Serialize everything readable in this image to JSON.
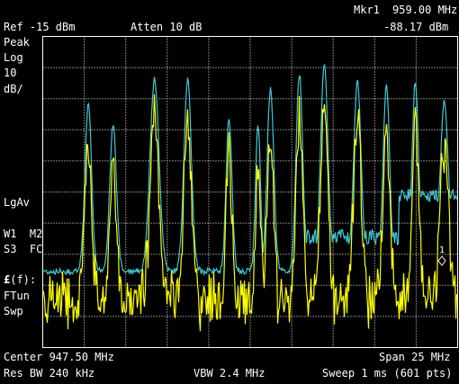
{
  "header": {
    "marker_label": "Mkr1",
    "marker_freq": "959.00 MHz",
    "ref_level": "Ref -15 dBm",
    "atten": "Atten 10 dB",
    "marker_amp": "-88.17 dBm"
  },
  "left_panel": {
    "detector": "Peak",
    "scale_type": "Log",
    "scale_value": "10",
    "scale_unit": "dB/",
    "avg_type": "LgAv",
    "trace_row1": "W1  M2",
    "trace_row2": "S3  FC",
    "f_symbol": "£",
    "f_label": "(f):",
    "tune_label": "FTun",
    "sweep_label": "Swp"
  },
  "footer": {
    "center": "Center 947.50 MHz",
    "span": "Span 25 MHz",
    "rbw": "Res BW 240 kHz",
    "vbw": "VBW 2.4 MHz",
    "sweep": "Sweep 1 ms (601 pts)"
  },
  "marker": {
    "number": "1"
  },
  "colors": {
    "background": "#000000",
    "graticule": "#ffffff",
    "trace_max": "#40c8d8",
    "trace_avg": "#ffff00",
    "text": "#ffffff"
  }
}
